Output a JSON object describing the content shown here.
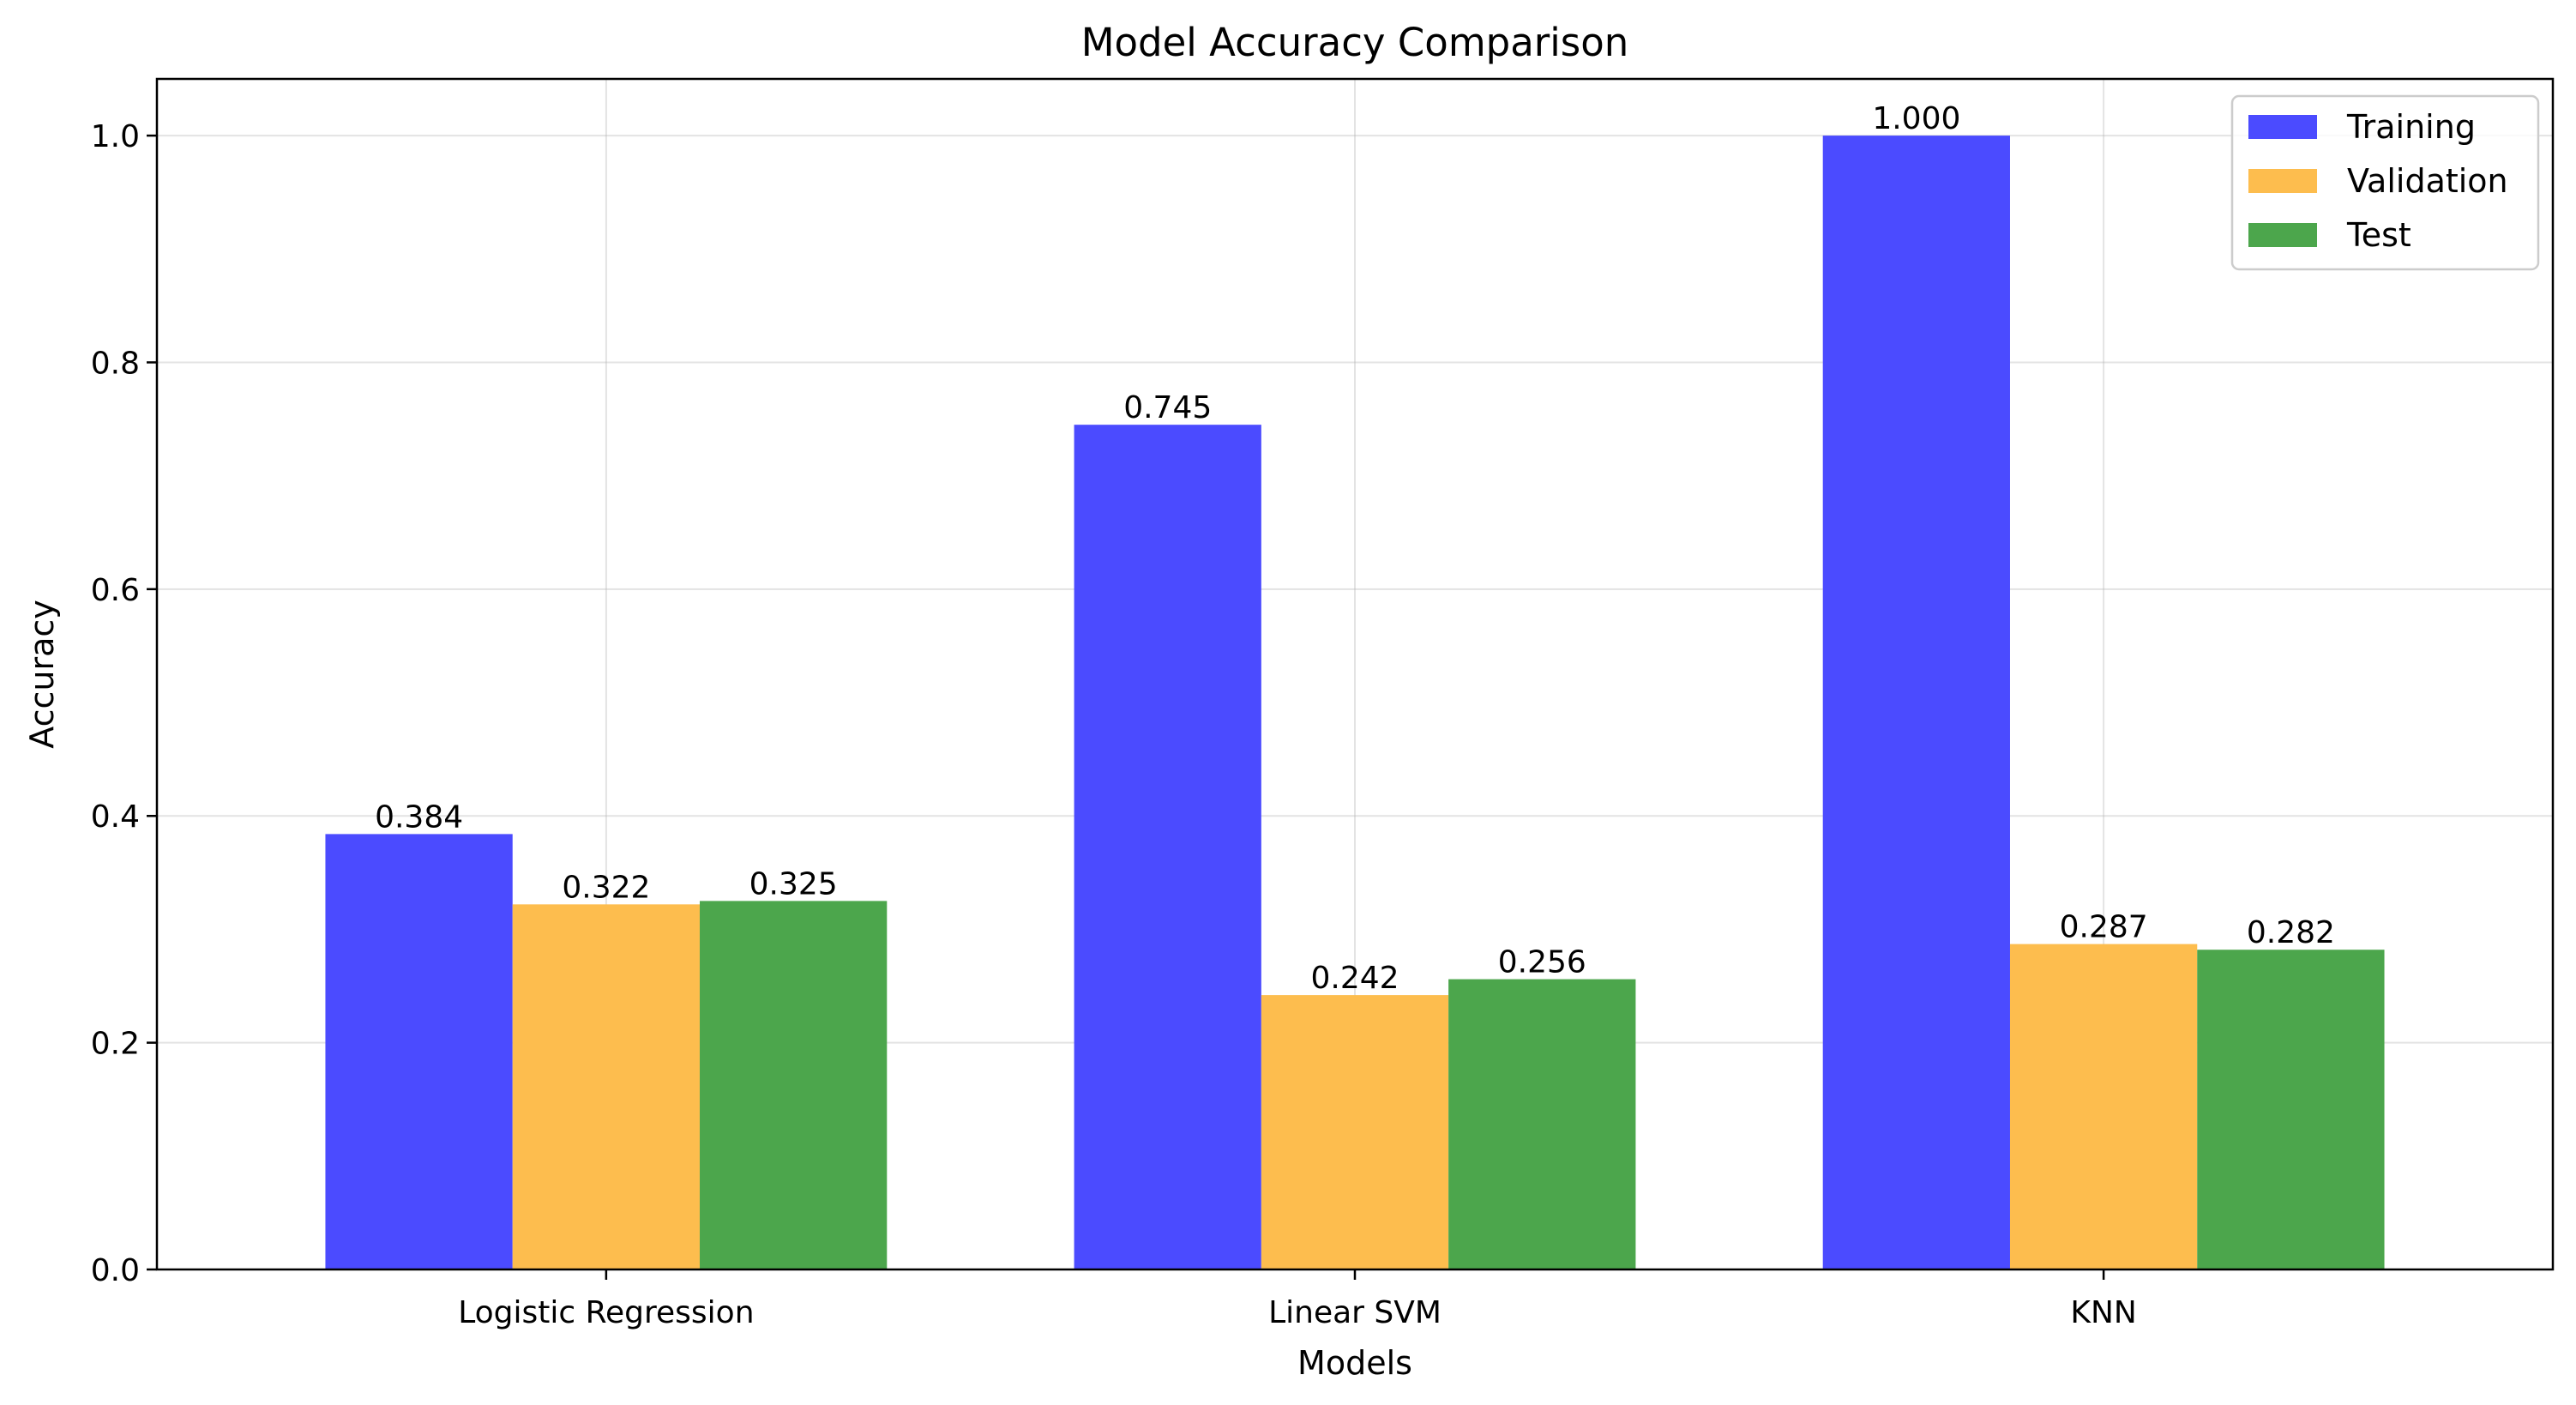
{
  "chart_data": {
    "type": "bar",
    "title": "Model Accuracy Comparison",
    "xlabel": "Models",
    "ylabel": "Accuracy",
    "categories": [
      "Logistic Regression",
      "Linear SVM",
      "KNN"
    ],
    "series": [
      {
        "name": "Training",
        "color": "#4b4bff",
        "values": [
          0.384,
          0.745,
          1.0
        ],
        "labels": [
          "0.384",
          "0.745",
          "1.000"
        ]
      },
      {
        "name": "Validation",
        "color": "#fdbd4e",
        "values": [
          0.322,
          0.242,
          0.287
        ],
        "labels": [
          "0.322",
          "0.242",
          "0.287"
        ]
      },
      {
        "name": "Test",
        "color": "#4ca64c",
        "values": [
          0.325,
          0.256,
          0.282
        ],
        "labels": [
          "0.325",
          "0.256",
          "0.282"
        ]
      }
    ],
    "ylim": [
      0,
      1.05
    ],
    "yticks": [
      0.0,
      0.2,
      0.4,
      0.6,
      0.8,
      1.0
    ],
    "ytick_labels": [
      "0.0",
      "0.2",
      "0.4",
      "0.6",
      "0.8",
      "1.0"
    ],
    "grid": true,
    "legend_position": "upper right"
  }
}
